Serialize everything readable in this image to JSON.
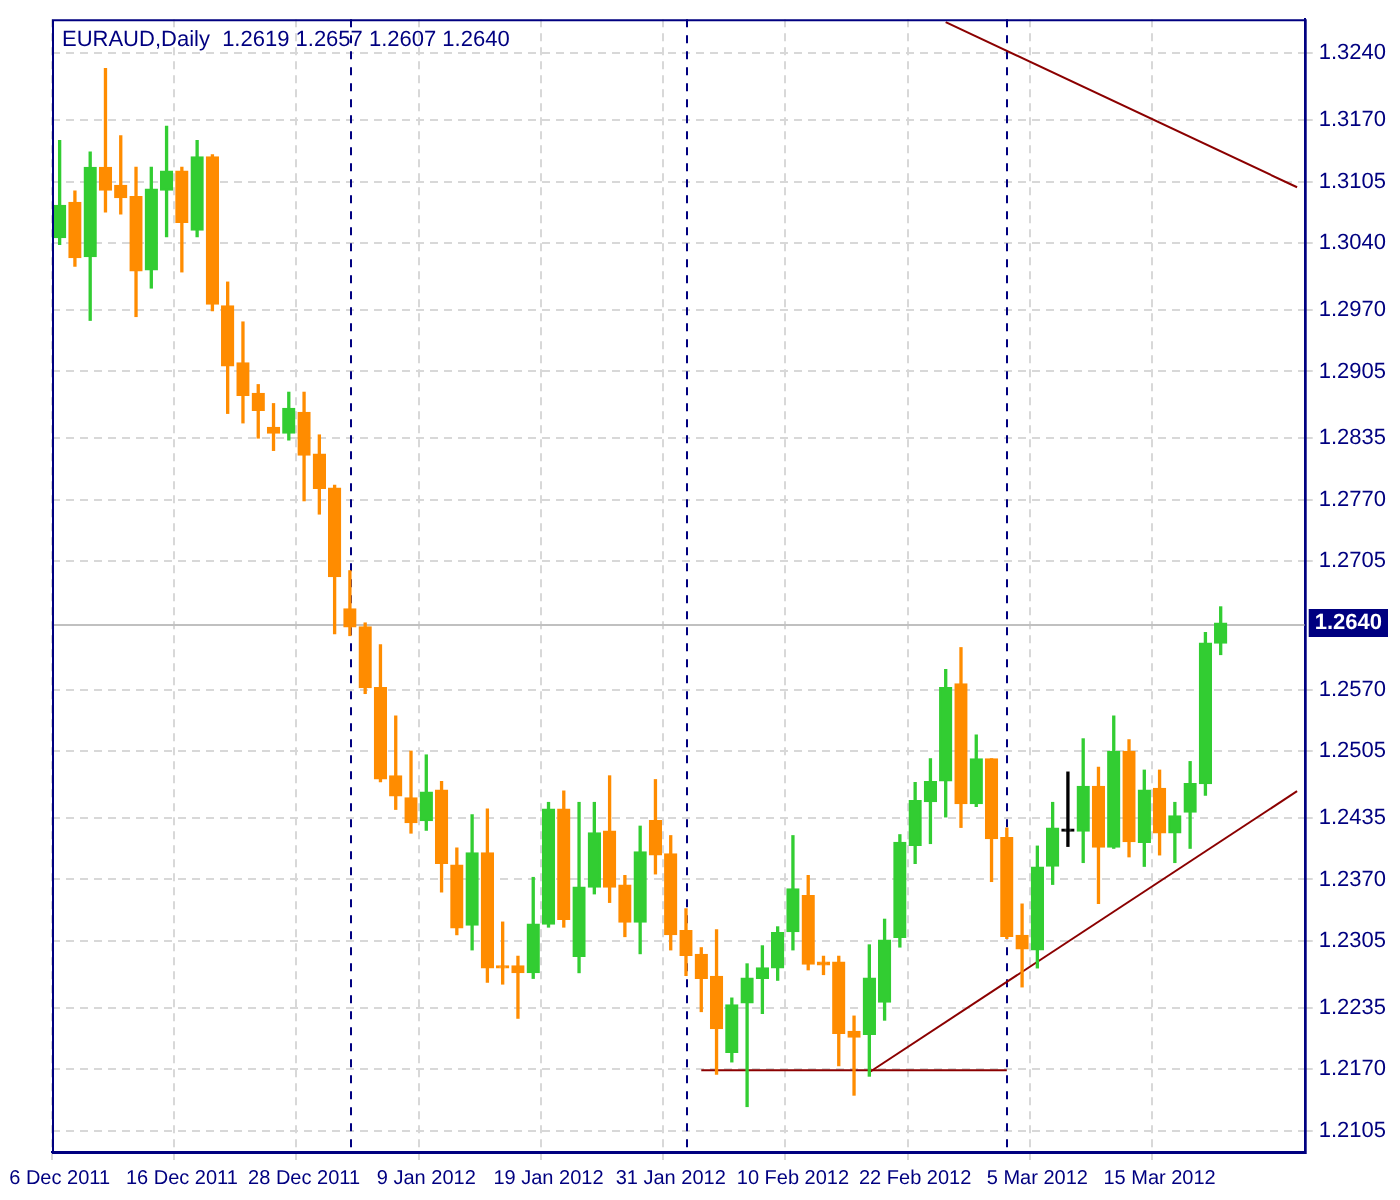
{
  "chart_data": {
    "type": "candlestick",
    "title": "EURAUD,Daily  1.2619 1.2657 1.2607 1.2640",
    "categories": [
      "6 Dec 2011",
      null,
      null,
      null,
      null,
      null,
      null,
      null,
      "16 Dec 2011",
      null,
      null,
      null,
      null,
      null,
      null,
      null,
      "28 Dec 2011",
      null,
      null,
      null,
      null,
      null,
      null,
      null,
      "9 Jan 2012",
      null,
      null,
      null,
      null,
      null,
      null,
      null,
      "19 Jan 2012",
      null,
      null,
      null,
      null,
      null,
      null,
      null,
      "31 Jan 2012",
      null,
      null,
      null,
      null,
      null,
      null,
      null,
      "10 Feb 2012",
      null,
      null,
      null,
      null,
      null,
      null,
      null,
      "22 Feb 2012",
      null,
      null,
      null,
      null,
      null,
      null,
      null,
      "5 Mar 2012",
      null,
      null,
      null,
      null,
      null,
      null,
      null,
      "15 Mar 2012",
      null,
      null,
      null,
      null,
      null,
      null,
      null,
      null,
      null
    ],
    "ohlc": [
      [
        1.3046,
        1.3148,
        1.3039,
        1.308
      ],
      [
        1.3083,
        1.3095,
        1.3016,
        1.3025
      ],
      [
        1.3026,
        1.3136,
        1.2959,
        1.312
      ],
      [
        1.312,
        1.3224,
        1.3073,
        1.3096
      ],
      [
        1.3101,
        1.3153,
        1.3071,
        1.3088
      ],
      [
        1.3089,
        1.312,
        1.2963,
        1.3011
      ],
      [
        1.3012,
        1.312,
        1.2993,
        1.3097
      ],
      [
        1.3096,
        1.3163,
        1.3047,
        1.3116
      ],
      [
        1.3116,
        1.312,
        1.301,
        1.3062
      ],
      [
        1.3054,
        1.3148,
        1.3047,
        1.3131
      ],
      [
        1.3131,
        1.3133,
        1.2969,
        1.2976
      ],
      [
        1.2974,
        1.2999,
        1.2861,
        1.2911
      ],
      [
        1.2914,
        1.2957,
        1.2851,
        1.288
      ],
      [
        1.2882,
        1.2891,
        1.2835,
        1.2864
      ],
      [
        1.2846,
        1.2871,
        1.2822,
        1.284
      ],
      [
        1.284,
        1.2883,
        1.2833,
        1.2866
      ],
      [
        1.2862,
        1.2883,
        1.2769,
        1.2817
      ],
      [
        1.2818,
        1.2838,
        1.2755,
        1.2782
      ],
      [
        1.2782,
        1.2785,
        1.2629,
        1.2689
      ],
      [
        1.2655,
        1.2695,
        1.2627,
        1.2636
      ],
      [
        1.2636,
        1.264,
        1.2566,
        1.2572
      ],
      [
        1.2572,
        1.2617,
        1.2473,
        1.2476
      ],
      [
        1.2479,
        1.2542,
        1.2444,
        1.2458
      ],
      [
        1.2456,
        1.2505,
        1.2419,
        1.243
      ],
      [
        1.2432,
        1.2501,
        1.2422,
        1.2462
      ],
      [
        1.2464,
        1.2473,
        1.2357,
        1.2387
      ],
      [
        1.2385,
        1.2403,
        1.2312,
        1.2319
      ],
      [
        1.2322,
        1.2438,
        1.2296,
        1.2398
      ],
      [
        1.2398,
        1.2444,
        1.2262,
        1.2277
      ],
      [
        1.2279,
        1.2325,
        1.226,
        1.2277
      ],
      [
        1.2279,
        1.2289,
        1.2224,
        1.2272
      ],
      [
        1.2272,
        1.2372,
        1.2266,
        1.2323
      ],
      [
        1.2323,
        1.2451,
        1.232,
        1.2444
      ],
      [
        1.2444,
        1.2463,
        1.232,
        1.2328
      ],
      [
        1.2289,
        1.2451,
        1.2272,
        1.2362
      ],
      [
        1.2362,
        1.2451,
        1.2355,
        1.2419
      ],
      [
        1.2421,
        1.2479,
        1.2346,
        1.2362
      ],
      [
        1.2364,
        1.2374,
        1.231,
        1.2325
      ],
      [
        1.2325,
        1.2426,
        1.2292,
        1.2399
      ],
      [
        1.2432,
        1.2475,
        1.2376,
        1.2396
      ],
      [
        1.2397,
        1.2416,
        1.2296,
        1.2312
      ],
      [
        1.2316,
        1.2339,
        1.2269,
        1.229
      ],
      [
        1.2291,
        1.2298,
        1.2231,
        1.2266
      ],
      [
        1.2268,
        1.2317,
        1.2165,
        1.2213
      ],
      [
        1.2188,
        1.2245,
        1.2178,
        1.2238
      ],
      [
        1.224,
        1.2281,
        1.2131,
        1.2266
      ],
      [
        1.2266,
        1.23,
        1.2229,
        1.2277
      ],
      [
        1.2277,
        1.232,
        1.2264,
        1.2314
      ],
      [
        1.2315,
        1.2416,
        1.2296,
        1.236
      ],
      [
        1.2353,
        1.2374,
        1.2275,
        1.2281
      ],
      [
        1.2283,
        1.2289,
        1.227,
        1.228
      ],
      [
        1.2283,
        1.2289,
        1.2174,
        1.2208
      ],
      [
        1.221,
        1.2226,
        1.2143,
        1.2204
      ],
      [
        1.2207,
        1.2301,
        1.2163,
        1.2266
      ],
      [
        1.2241,
        1.2328,
        1.2222,
        1.2306
      ],
      [
        1.2309,
        1.2417,
        1.2299,
        1.2409
      ],
      [
        1.2406,
        1.2472,
        1.2387,
        1.2453
      ],
      [
        1.2452,
        1.2497,
        1.2408,
        1.2473
      ],
      [
        1.2474,
        1.2591,
        1.2436,
        1.2572
      ],
      [
        1.2576,
        1.2614,
        1.2425,
        1.245
      ],
      [
        1.245,
        1.2522,
        1.2447,
        1.2497
      ],
      [
        1.2497,
        1.2497,
        1.2368,
        1.2413
      ],
      [
        1.2414,
        1.2424,
        1.2308,
        1.231
      ],
      [
        1.2311,
        1.2344,
        1.2257,
        1.2297
      ],
      [
        1.2296,
        1.2405,
        1.2277,
        1.2383
      ],
      [
        1.2384,
        1.2451,
        1.2365,
        1.2424
      ],
      [
        1.2421,
        1.2483,
        1.2405,
        1.2421
      ],
      [
        1.2421,
        1.2518,
        1.2388,
        1.2468
      ],
      [
        1.2468,
        1.2488,
        1.2345,
        1.2404
      ],
      [
        1.2404,
        1.2542,
        1.2403,
        1.2505
      ],
      [
        1.2505,
        1.2517,
        1.2394,
        1.241
      ],
      [
        1.2409,
        1.2485,
        1.2384,
        1.2464
      ],
      [
        1.2466,
        1.2485,
        1.2396,
        1.2419
      ],
      [
        1.2419,
        1.2451,
        1.2388,
        1.2437
      ],
      [
        1.2441,
        1.2494,
        1.2403,
        1.2471
      ],
      [
        1.2471,
        1.263,
        1.2459,
        1.2619
      ],
      [
        1.2619,
        1.2657,
        1.2607,
        1.264
      ],
      null,
      null,
      null,
      null,
      null
    ],
    "colors": [
      "#32cd32",
      "#ff8c00",
      "#32cd32",
      "#ff8c00",
      "#ff8c00",
      "#ff8c00",
      "#32cd32",
      "#32cd32",
      "#ff8c00",
      "#32cd32",
      "#ff8c00",
      "#ff8c00",
      "#ff8c00",
      "#ff8c00",
      "#ff8c00",
      "#32cd32",
      "#ff8c00",
      "#ff8c00",
      "#ff8c00",
      "#ff8c00",
      "#ff8c00",
      "#ff8c00",
      "#ff8c00",
      "#ff8c00",
      "#32cd32",
      "#ff8c00",
      "#ff8c00",
      "#32cd32",
      "#ff8c00",
      "#ff8c00",
      "#ff8c00",
      "#32cd32",
      "#32cd32",
      "#ff8c00",
      "#32cd32",
      "#32cd32",
      "#ff8c00",
      "#ff8c00",
      "#32cd32",
      "#ff8c00",
      "#ff8c00",
      "#ff8c00",
      "#ff8c00",
      "#ff8c00",
      "#32cd32",
      "#32cd32",
      "#32cd32",
      "#32cd32",
      "#32cd32",
      "#ff8c00",
      "#ff8c00",
      "#ff8c00",
      "#ff8c00",
      "#32cd32",
      "#32cd32",
      "#32cd32",
      "#32cd32",
      "#32cd32",
      "#32cd32",
      "#ff8c00",
      "#32cd32",
      "#ff8c00",
      "#ff8c00",
      "#ff8c00",
      "#32cd32",
      "#32cd32",
      "#000000",
      "#32cd32",
      "#ff8c00",
      "#32cd32",
      "#ff8c00",
      "#32cd32",
      "#ff8c00",
      "#32cd32",
      "#32cd32",
      "#32cd32",
      "#32cd32",
      null,
      null,
      null,
      null,
      null
    ],
    "series": [
      {
        "type": "line",
        "color": "#8b0000",
        "values": [
          null,
          null,
          null,
          null,
          null,
          null,
          null,
          null,
          null,
          null,
          null,
          null,
          null,
          null,
          null,
          null,
          null,
          null,
          null,
          null,
          null,
          null,
          null,
          null,
          null,
          null,
          null,
          null,
          null,
          null,
          null,
          null,
          null,
          null,
          null,
          null,
          null,
          null,
          null,
          null,
          null,
          null,
          1.2169,
          null,
          null,
          null,
          null,
          null,
          null,
          null,
          null,
          null,
          null,
          null,
          null,
          null,
          null,
          null,
          null,
          null,
          null,
          null,
          1.2169,
          null,
          null,
          null,
          null,
          null,
          null,
          null,
          null,
          null,
          null,
          null,
          null,
          null,
          null,
          null,
          null,
          null,
          null,
          null
        ]
      },
      {
        "type": "line",
        "color": "#8b0000",
        "values": [
          null,
          null,
          null,
          null,
          null,
          null,
          null,
          null,
          null,
          null,
          null,
          null,
          null,
          null,
          null,
          null,
          null,
          null,
          null,
          null,
          null,
          null,
          null,
          null,
          null,
          null,
          null,
          null,
          null,
          null,
          null,
          null,
          null,
          null,
          null,
          null,
          null,
          null,
          null,
          null,
          null,
          null,
          null,
          null,
          null,
          null,
          null,
          null,
          null,
          null,
          null,
          null,
          null,
          1.2167,
          null,
          null,
          null,
          null,
          null,
          null,
          null,
          null,
          null,
          null,
          null,
          null,
          null,
          null,
          null,
          null,
          null,
          null,
          null,
          null,
          null,
          null,
          null,
          null,
          null,
          null,
          null,
          1.2463
        ]
      },
      {
        "type": "line",
        "color": "#8b0000",
        "values": [
          null,
          null,
          null,
          null,
          null,
          null,
          null,
          null,
          null,
          null,
          null,
          null,
          null,
          null,
          null,
          null,
          null,
          null,
          null,
          null,
          null,
          null,
          null,
          null,
          null,
          null,
          null,
          null,
          null,
          null,
          null,
          null,
          null,
          null,
          null,
          null,
          null,
          null,
          null,
          null,
          null,
          null,
          null,
          null,
          null,
          null,
          null,
          null,
          null,
          null,
          null,
          null,
          null,
          null,
          null,
          null,
          null,
          null,
          1.3273,
          null,
          null,
          null,
          null,
          null,
          null,
          null,
          null,
          null,
          null,
          null,
          null,
          null,
          null,
          null,
          null,
          null,
          null,
          null,
          null,
          null,
          null,
          1.3099
        ]
      }
    ],
    "ylim": [
      1.2083,
      1.3276
    ],
    "yticks": [
      {
        "value": 1.2105,
        "label": "1.2105"
      },
      {
        "value": 1.217,
        "label": "1.2170"
      },
      {
        "value": 1.2235,
        "label": "1.2235"
      },
      {
        "value": 1.2305,
        "label": "1.2305"
      },
      {
        "value": 1.237,
        "label": "1.2370"
      },
      {
        "value": 1.2435,
        "label": "1.2435"
      },
      {
        "value": 1.2505,
        "label": "1.2505"
      },
      {
        "value": 1.257,
        "label": "1.2570"
      },
      {
        "value": 1.2705,
        "label": "1.2705"
      },
      {
        "value": 1.277,
        "label": "1.2770"
      },
      {
        "value": 1.2835,
        "label": "1.2835"
      },
      {
        "value": 1.2905,
        "label": "1.2905"
      },
      {
        "value": 1.297,
        "label": "1.2970"
      },
      {
        "value": 1.304,
        "label": "1.3040"
      },
      {
        "value": 1.3105,
        "label": "1.3105"
      },
      {
        "value": 1.317,
        "label": "1.3170"
      },
      {
        "value": 1.324,
        "label": "1.3240"
      }
    ],
    "ref_lines": [
      {
        "axis": "y",
        "value": 1.264,
        "label": "1.2640",
        "color": "#c0c0c0"
      }
    ],
    "grid": true,
    "legend": false
  }
}
